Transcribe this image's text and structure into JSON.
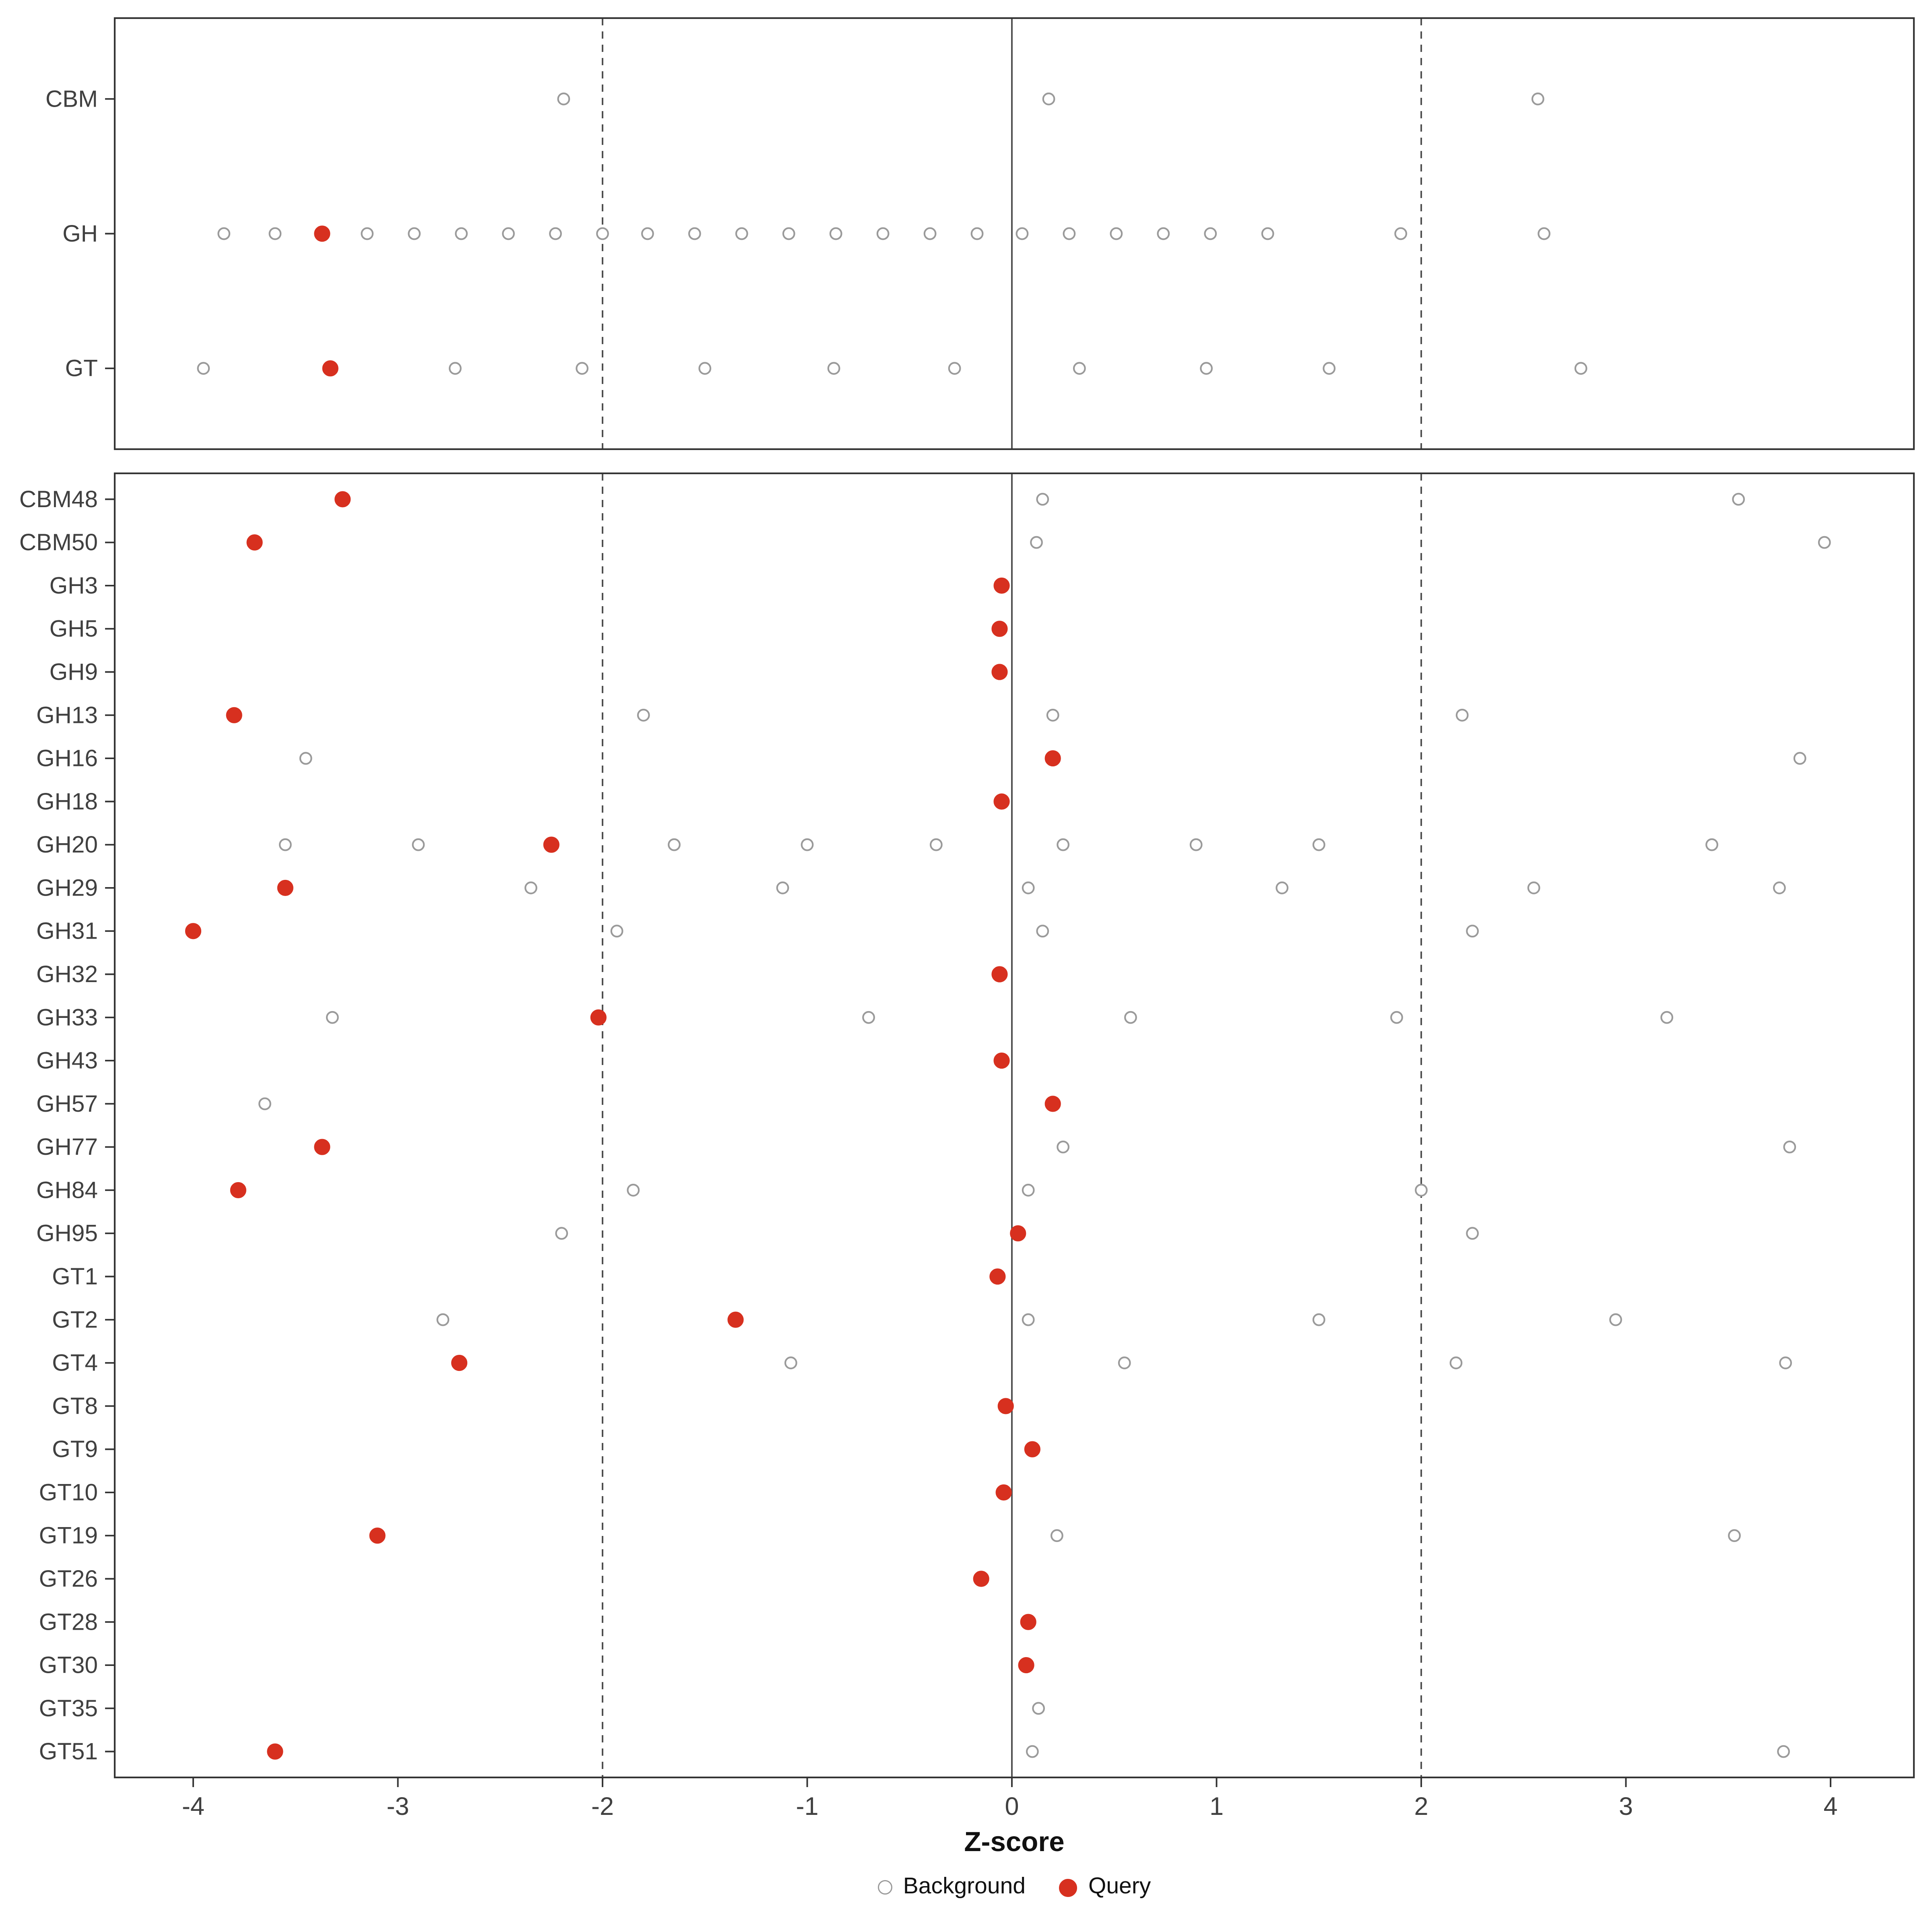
{
  "chart_data": {
    "type": "scatter",
    "title": "",
    "xlabel": "Z-score",
    "ylabel": "",
    "x_ticks": [
      -4,
      -3,
      -2,
      -1,
      0,
      1,
      2,
      3,
      4
    ],
    "xlim": [
      -4.38,
      4.41
    ],
    "grid": "off",
    "reference_lines": {
      "solid": [
        0
      ],
      "dashed": [
        -2,
        2
      ]
    },
    "legend": {
      "position": "bottom",
      "items": [
        {
          "label": "Background",
          "style": "open"
        },
        {
          "label": "Query",
          "style": "filled"
        }
      ]
    },
    "colors": {
      "query": "#d7301f",
      "background_fill": "#ffffff",
      "background_stroke": "#9a9a9a",
      "panel_border": "#333333",
      "reference_line": "#4d4d4d",
      "text": "#404040"
    },
    "panels": [
      {
        "id": "summary",
        "rows": [
          {
            "label": "CBM",
            "background": [
              -2.19,
              0.18,
              2.57
            ],
            "query": []
          },
          {
            "label": "GH",
            "background": [
              -3.85,
              -3.6,
              -3.15,
              -2.92,
              -2.69,
              -2.46,
              -2.23,
              -2.0,
              -1.78,
              -1.55,
              -1.32,
              -1.09,
              -0.86,
              -0.63,
              -0.4,
              -0.17,
              0.05,
              0.28,
              0.51,
              0.74,
              0.97,
              1.25,
              1.9,
              2.6
            ],
            "query": [
              -3.37
            ]
          },
          {
            "label": "GT",
            "background": [
              -3.95,
              -2.72,
              -2.1,
              -1.5,
              -0.87,
              -0.28,
              0.33,
              0.95,
              1.55,
              2.78
            ],
            "query": [
              -3.33
            ]
          }
        ]
      },
      {
        "id": "families",
        "rows": [
          {
            "label": "CBM48",
            "background": [
              0.15,
              3.55
            ],
            "query": [
              -3.27
            ]
          },
          {
            "label": "CBM50",
            "background": [
              0.12,
              3.97
            ],
            "query": [
              -3.7
            ]
          },
          {
            "label": "GH3",
            "background": [],
            "query": [
              -0.05
            ]
          },
          {
            "label": "GH5",
            "background": [],
            "query": [
              -0.06
            ]
          },
          {
            "label": "GH9",
            "background": [],
            "query": [
              -0.06
            ]
          },
          {
            "label": "GH13",
            "background": [
              -1.8,
              0.2,
              2.2
            ],
            "query": [
              -3.8
            ]
          },
          {
            "label": "GH16",
            "background": [
              -3.45,
              3.85
            ],
            "query": [
              0.2
            ]
          },
          {
            "label": "GH18",
            "background": [],
            "query": [
              -0.05
            ]
          },
          {
            "label": "GH20",
            "background": [
              -3.55,
              -2.9,
              -1.65,
              -1.0,
              -0.37,
              0.25,
              0.9,
              1.5,
              3.42
            ],
            "query": [
              -2.25
            ]
          },
          {
            "label": "GH29",
            "background": [
              -2.35,
              -1.12,
              0.08,
              1.32,
              2.55,
              3.75
            ],
            "query": [
              -3.55
            ]
          },
          {
            "label": "GH31",
            "background": [
              -1.93,
              0.15,
              2.25
            ],
            "query": [
              -4.0
            ]
          },
          {
            "label": "GH32",
            "background": [],
            "query": [
              -0.06
            ]
          },
          {
            "label": "GH33",
            "background": [
              -3.32,
              -0.7,
              0.58,
              1.88,
              3.2
            ],
            "query": [
              -2.02
            ]
          },
          {
            "label": "GH43",
            "background": [],
            "query": [
              -0.05
            ]
          },
          {
            "label": "GH57",
            "background": [
              -3.65
            ],
            "query": [
              0.2
            ]
          },
          {
            "label": "GH77",
            "background": [
              0.25,
              3.8
            ],
            "query": [
              -3.37
            ]
          },
          {
            "label": "GH84",
            "background": [
              -1.85,
              0.08,
              2.0
            ],
            "query": [
              -3.78
            ]
          },
          {
            "label": "GH95",
            "background": [
              -2.2,
              2.25
            ],
            "query": [
              0.03
            ]
          },
          {
            "label": "GT1",
            "background": [],
            "query": [
              -0.07
            ]
          },
          {
            "label": "GT2",
            "background": [
              -2.78,
              0.08,
              1.5,
              2.95
            ],
            "query": [
              -1.35
            ]
          },
          {
            "label": "GT4",
            "background": [
              -1.08,
              0.55,
              2.17,
              3.78
            ],
            "query": [
              -2.7
            ]
          },
          {
            "label": "GT8",
            "background": [],
            "query": [
              -0.03
            ]
          },
          {
            "label": "GT9",
            "background": [],
            "query": [
              0.1
            ]
          },
          {
            "label": "GT10",
            "background": [],
            "query": [
              -0.04
            ]
          },
          {
            "label": "GT19",
            "background": [
              0.22,
              3.53
            ],
            "query": [
              -3.1
            ]
          },
          {
            "label": "GT26",
            "background": [],
            "query": [
              -0.15
            ]
          },
          {
            "label": "GT28",
            "background": [],
            "query": [
              0.08
            ]
          },
          {
            "label": "GT30",
            "background": [],
            "query": [
              0.07
            ]
          },
          {
            "label": "GT35",
            "background": [
              0.13
            ],
            "query": []
          },
          {
            "label": "GT51",
            "background": [
              0.1,
              3.77
            ],
            "query": [
              -3.6
            ]
          }
        ]
      }
    ]
  }
}
